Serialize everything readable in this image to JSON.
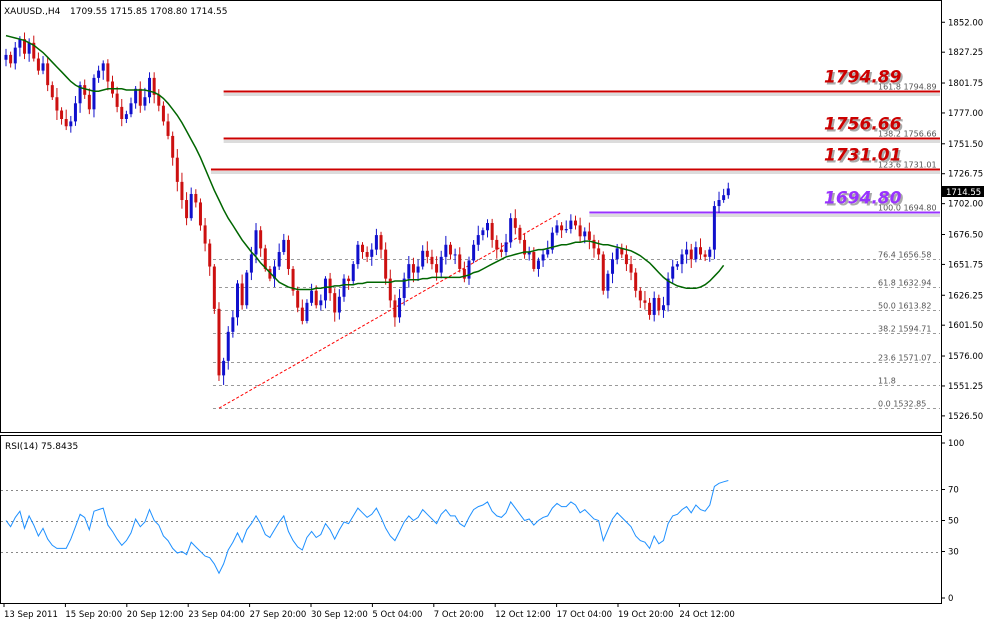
{
  "header": {
    "symbol": "XAUUSD.,H4",
    "ohlc": "1709.55 1715.85 1708.80 1714.55"
  },
  "price_box": "1714.55",
  "rsi_header": "RSI(14) 75.8435",
  "colors": {
    "bull": "#1010cc",
    "bear": "#cc1010",
    "ma": "#006600",
    "rsi": "#1e90ff",
    "level": "#cc0000",
    "level100": "#9933ff",
    "trend": "#ff0000",
    "fib": "#999999"
  },
  "chart_data": [
    {
      "type": "candlestick",
      "title": "XAUUSD.,H4",
      "ylim": [
        1514,
        1858
      ],
      "y_ticks": [
        "1852.00",
        "1827.25",
        "1801.75",
        "1777.00",
        "1751.50",
        "1726.75",
        "1702.00",
        "1676.50",
        "1651.75",
        "1626.25",
        "1601.50",
        "1576.00",
        "1551.25",
        "1526.50"
      ],
      "x_ticks": [
        "13 Sep 2011",
        "15 Sep 20:00",
        "20 Sep 12:00",
        "23 Sep 04:00",
        "27 Sep 20:00",
        "30 Sep 12:00",
        "5 Oct 04:00",
        "7 Oct 20:00",
        "12 Oct 12:00",
        "17 Oct 04:00",
        "19 Oct 20:00",
        "24 Oct 12:00"
      ],
      "close": [
        1825,
        1818,
        1831,
        1838,
        1826,
        1835,
        1822,
        1812,
        1818,
        1800,
        1790,
        1779,
        1772,
        1766,
        1770,
        1785,
        1800,
        1792,
        1780,
        1806,
        1812,
        1818,
        1803,
        1793,
        1782,
        1772,
        1776,
        1785,
        1797,
        1783,
        1790,
        1806,
        1792,
        1783,
        1770,
        1758,
        1740,
        1720,
        1705,
        1690,
        1710,
        1703,
        1684,
        1669,
        1650,
        1615,
        1560,
        1572,
        1596,
        1608,
        1636,
        1618,
        1645,
        1660,
        1680,
        1665,
        1648,
        1640,
        1650,
        1662,
        1672,
        1648,
        1630,
        1616,
        1605,
        1620,
        1630,
        1618,
        1622,
        1640,
        1628,
        1612,
        1625,
        1640,
        1638,
        1652,
        1668,
        1662,
        1658,
        1664,
        1676,
        1664,
        1640,
        1622,
        1608,
        1624,
        1640,
        1652,
        1645,
        1650,
        1663,
        1658,
        1652,
        1645,
        1658,
        1668,
        1660,
        1660,
        1648,
        1640,
        1655,
        1668,
        1676,
        1680,
        1686,
        1672,
        1664,
        1662,
        1670,
        1690,
        1682,
        1672,
        1660,
        1662,
        1648,
        1655,
        1660,
        1664,
        1678,
        1684,
        1680,
        1681,
        1688,
        1684,
        1675,
        1679,
        1672,
        1665,
        1660,
        1630,
        1644,
        1656,
        1665,
        1660,
        1652,
        1645,
        1630,
        1622,
        1620,
        1610,
        1624,
        1614,
        1618,
        1640,
        1650,
        1652,
        1660,
        1664,
        1656,
        1666,
        1660,
        1658,
        1664,
        1700,
        1705,
        1709,
        1714.55
      ],
      "ma": [
        1841,
        1840,
        1839,
        1838,
        1837,
        1835,
        1833,
        1830,
        1827,
        1823,
        1819,
        1815,
        1811,
        1807,
        1803,
        1800,
        1798,
        1797,
        1796,
        1795,
        1795,
        1796,
        1797,
        1797,
        1797,
        1797,
        1796,
        1796,
        1796,
        1796,
        1796,
        1795,
        1794,
        1792,
        1789,
        1785,
        1780,
        1775,
        1769,
        1762,
        1755,
        1748,
        1740,
        1731,
        1722,
        1713,
        1705,
        1697,
        1690,
        1684,
        1678,
        1672,
        1667,
        1662,
        1658,
        1653,
        1649,
        1645,
        1641,
        1637,
        1635,
        1633,
        1632,
        1631,
        1631,
        1631,
        1631,
        1632,
        1632,
        1633,
        1633,
        1634,
        1634,
        1635,
        1635,
        1635,
        1636,
        1636,
        1637,
        1637,
        1637,
        1637,
        1637,
        1637,
        1638,
        1638,
        1638,
        1639,
        1639,
        1639,
        1640,
        1640,
        1641,
        1641,
        1641,
        1641,
        1641,
        1641,
        1641,
        1642,
        1643,
        1645,
        1646,
        1648,
        1650,
        1652,
        1654,
        1656,
        1658,
        1659,
        1660,
        1661,
        1662,
        1662,
        1663,
        1664,
        1664,
        1665,
        1666,
        1667,
        1668,
        1668,
        1669,
        1670,
        1670,
        1671,
        1671,
        1670,
        1669,
        1668,
        1668,
        1667,
        1666,
        1665,
        1664,
        1663,
        1661,
        1659,
        1656,
        1653,
        1649,
        1645,
        1641,
        1638,
        1636,
        1634,
        1633,
        1632,
        1632,
        1632,
        1633,
        1635,
        1638,
        1642,
        1646,
        1651
      ],
      "horizontal_levels": [
        {
          "label": "1794.89",
          "ratio": "161.8",
          "price": 1794.89,
          "value": "1794.89"
        },
        {
          "label": "1756.66",
          "ratio": "138.2",
          "price": 1756.66,
          "value": "1756.66"
        },
        {
          "label": "1731.01",
          "ratio": "123.6",
          "price": 1731.01,
          "value": "1731.01"
        },
        {
          "label": "1694.80",
          "ratio": "100.0",
          "price": 1694.8,
          "value": "1694.80"
        }
      ],
      "fib_levels": [
        {
          "ratio": "76.4",
          "price": 1656.58,
          "value": "1656.58"
        },
        {
          "ratio": "61.8",
          "price": 1632.94,
          "value": "1632.94"
        },
        {
          "ratio": "50.0",
          "price": 1613.82,
          "value": "1613.82"
        },
        {
          "ratio": "38.2",
          "price": 1594.71,
          "value": "1594.71"
        },
        {
          "ratio": "23.6",
          "price": 1571.07,
          "value": "1571.07"
        },
        {
          "ratio": "11.8",
          "price": 1551.95,
          "value": ""
        },
        {
          "ratio": "0.0",
          "price": 1532.85,
          "value": "1532.85"
        }
      ],
      "trendline": {
        "start_bar": 46,
        "start_price": 1532.85,
        "end_bar": 120,
        "end_price": 1694.8
      }
    },
    {
      "type": "line",
      "title": "RSI(14) 75.8435",
      "ylim": [
        0,
        100
      ],
      "y_ticks": [
        "100",
        "70",
        "50",
        "30",
        "0"
      ],
      "levels": [
        70,
        50,
        30
      ],
      "values": [
        50,
        46,
        52,
        56,
        45,
        53,
        47,
        40,
        45,
        38,
        34,
        32,
        32,
        32,
        38,
        46,
        54,
        52,
        44,
        56,
        57,
        58,
        47,
        43,
        38,
        34,
        37,
        42,
        51,
        46,
        49,
        57,
        50,
        47,
        40,
        37,
        32,
        29,
        30,
        28,
        36,
        33,
        30,
        27,
        26,
        22,
        16,
        22,
        31,
        36,
        42,
        36,
        44,
        48,
        53,
        48,
        41,
        39,
        44,
        49,
        53,
        43,
        37,
        33,
        31,
        39,
        43,
        39,
        41,
        48,
        44,
        38,
        44,
        49,
        48,
        53,
        58,
        55,
        52,
        54,
        58,
        52,
        45,
        40,
        37,
        43,
        49,
        53,
        50,
        52,
        57,
        54,
        51,
        48,
        54,
        57,
        53,
        53,
        48,
        46,
        52,
        57,
        59,
        60,
        62,
        56,
        53,
        52,
        55,
        62,
        58,
        54,
        50,
        51,
        47,
        50,
        52,
        53,
        58,
        61,
        59,
        59,
        62,
        60,
        55,
        57,
        54,
        51,
        50,
        37,
        44,
        51,
        55,
        52,
        49,
        46,
        40,
        37,
        36,
        32,
        40,
        35,
        37,
        48,
        53,
        54,
        57,
        59,
        55,
        60,
        57,
        56,
        60,
        72,
        74,
        75,
        75.8
      ]
    }
  ]
}
